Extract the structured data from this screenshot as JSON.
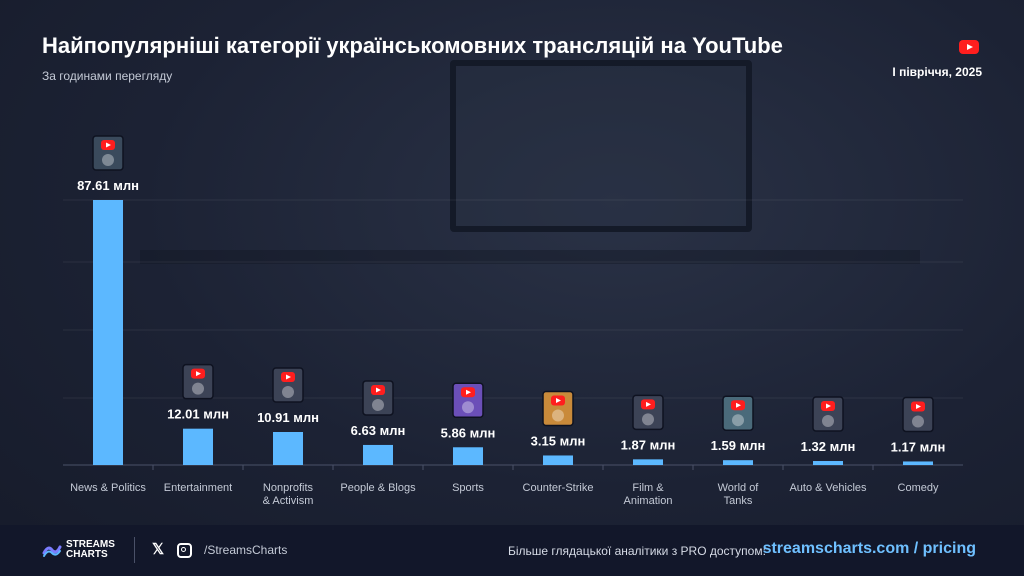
{
  "header": {
    "title": "Найпопулярніші категорії українськомовних трансляцій на YouTube",
    "subtitle": "За годинами перегляду",
    "period": "I півріччя, 2025"
  },
  "footer": {
    "brand_line1": "STREAMS",
    "brand_line2": "CHARTS",
    "social_handle": "/StreamsCharts",
    "promo_text": "Більше глядацької аналітики з PRO доступом:",
    "pricing_link": "streamscharts.com / pricing"
  },
  "colors": {
    "bar": "#5cb8ff",
    "accent": "#6fc0ff",
    "youtube": "#ff1e1e"
  },
  "chart_data": {
    "type": "bar",
    "categories": [
      "News & Politics",
      "Entertainment",
      "Nonprofits & Activism",
      "People & Blogs",
      "Sports",
      "Counter-Strike",
      "Film & Animation",
      "World of Tanks",
      "Auto & Vehicles",
      "Comedy"
    ],
    "category_labels": [
      [
        "News & Politics"
      ],
      [
        "Entertainment"
      ],
      [
        "Nonprofits",
        "& Activism"
      ],
      [
        "People & Blogs"
      ],
      [
        "Sports"
      ],
      [
        "Counter-Strike"
      ],
      [
        "Film &",
        "Animation"
      ],
      [
        "World of",
        "Tanks"
      ],
      [
        "Auto & Vehicles"
      ],
      [
        "Comedy"
      ]
    ],
    "values": [
      87.61,
      12.01,
      10.91,
      6.63,
      5.86,
      3.15,
      1.87,
      1.59,
      1.32,
      1.17
    ],
    "value_labels": [
      "87.61 млн",
      "12.01 млн",
      "10.91 млн",
      "6.63 млн",
      "5.86 млн",
      "3.15 млн",
      "1.87 млн",
      "1.59 млн",
      "1.32 млн",
      "1.17 млн"
    ],
    "icons": [
      "news-politics-icon",
      "entertainment-icon",
      "nonprofits-icon",
      "people-blogs-icon",
      "sports-icon",
      "counter-strike-icon",
      "film-animation-icon",
      "world-of-tanks-icon",
      "auto-vehicles-icon",
      "comedy-icon"
    ],
    "ylim": [
      0,
      90
    ],
    "grid": true,
    "legend": "none"
  }
}
